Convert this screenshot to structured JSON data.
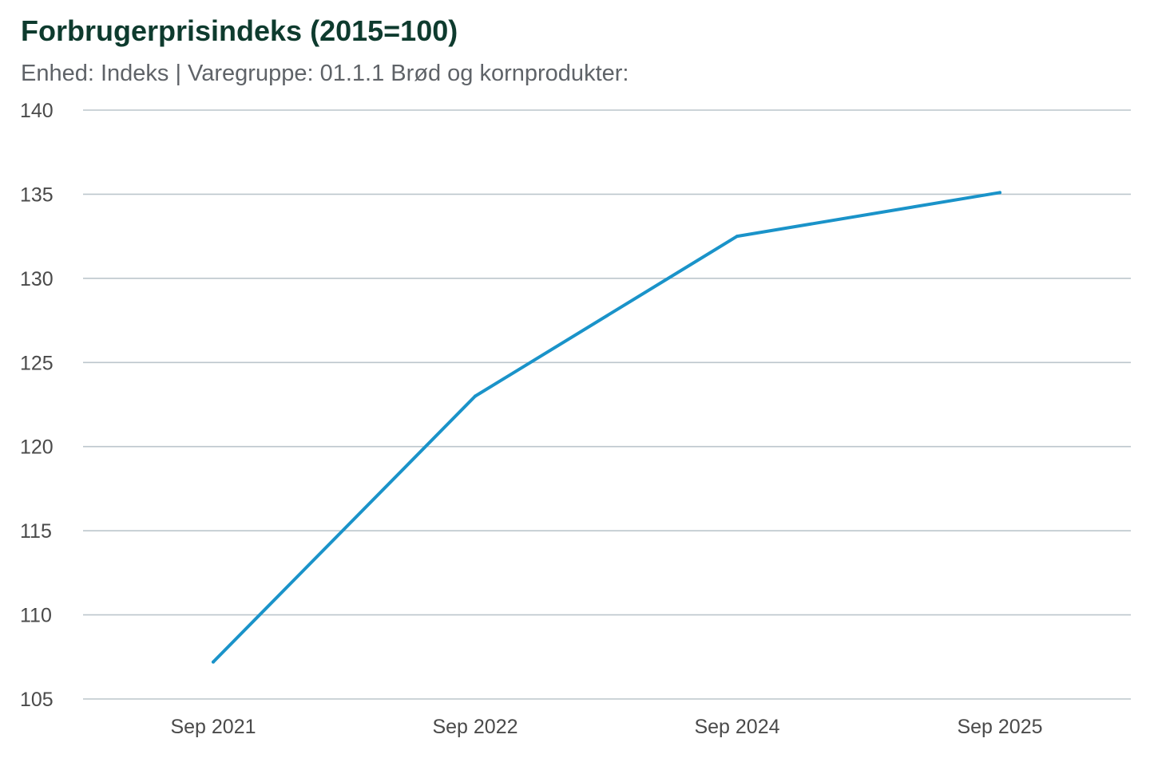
{
  "chart_data": {
    "type": "line",
    "title": "Forbrugerprisindeks (2015=100)",
    "subtitle": "Enhed: Indeks | Varegruppe: 01.1.1 Brød og kornprodukter:",
    "categories": [
      "Sep 2021",
      "Sep 2022",
      "Sep 2024",
      "Sep 2025"
    ],
    "series": [
      {
        "values": [
          107.2,
          123.0,
          132.5,
          135.1
        ]
      }
    ],
    "ylim": [
      105,
      140
    ],
    "yticks": [
      105,
      110,
      115,
      120,
      125,
      130,
      135,
      140
    ],
    "grid": true,
    "colors": {
      "line": "#1a93c9",
      "grid": "#bcc6cc",
      "title": "#0e3b2e"
    }
  }
}
